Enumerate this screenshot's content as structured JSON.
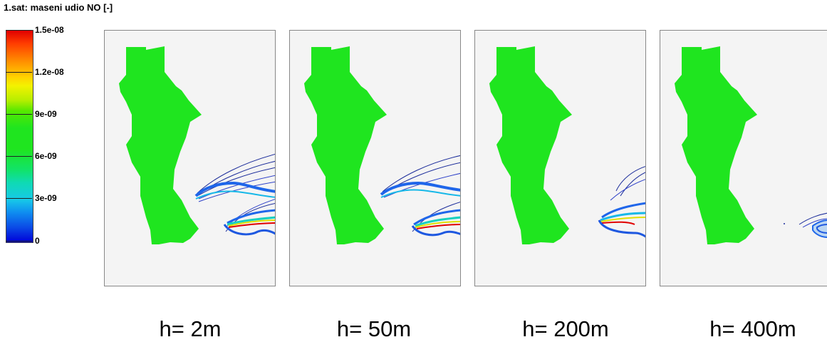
{
  "title": "1.sat: maseni udio NO [-]",
  "colorbar": {
    "ticks": [
      "1.5e-08",
      "1.2e-08",
      "9e-09",
      "6e-09",
      "3e-09",
      "0"
    ]
  },
  "panels": [
    {
      "label": "h= 2m"
    },
    {
      "label": "h= 50m"
    },
    {
      "label": "h= 200m"
    },
    {
      "label": "h= 400m"
    }
  ],
  "colors": {
    "land": "#1fe51f",
    "background": "#f4f4f4",
    "contour_outer": "#1a2b9a",
    "contour_core_red": "#e00000"
  }
}
